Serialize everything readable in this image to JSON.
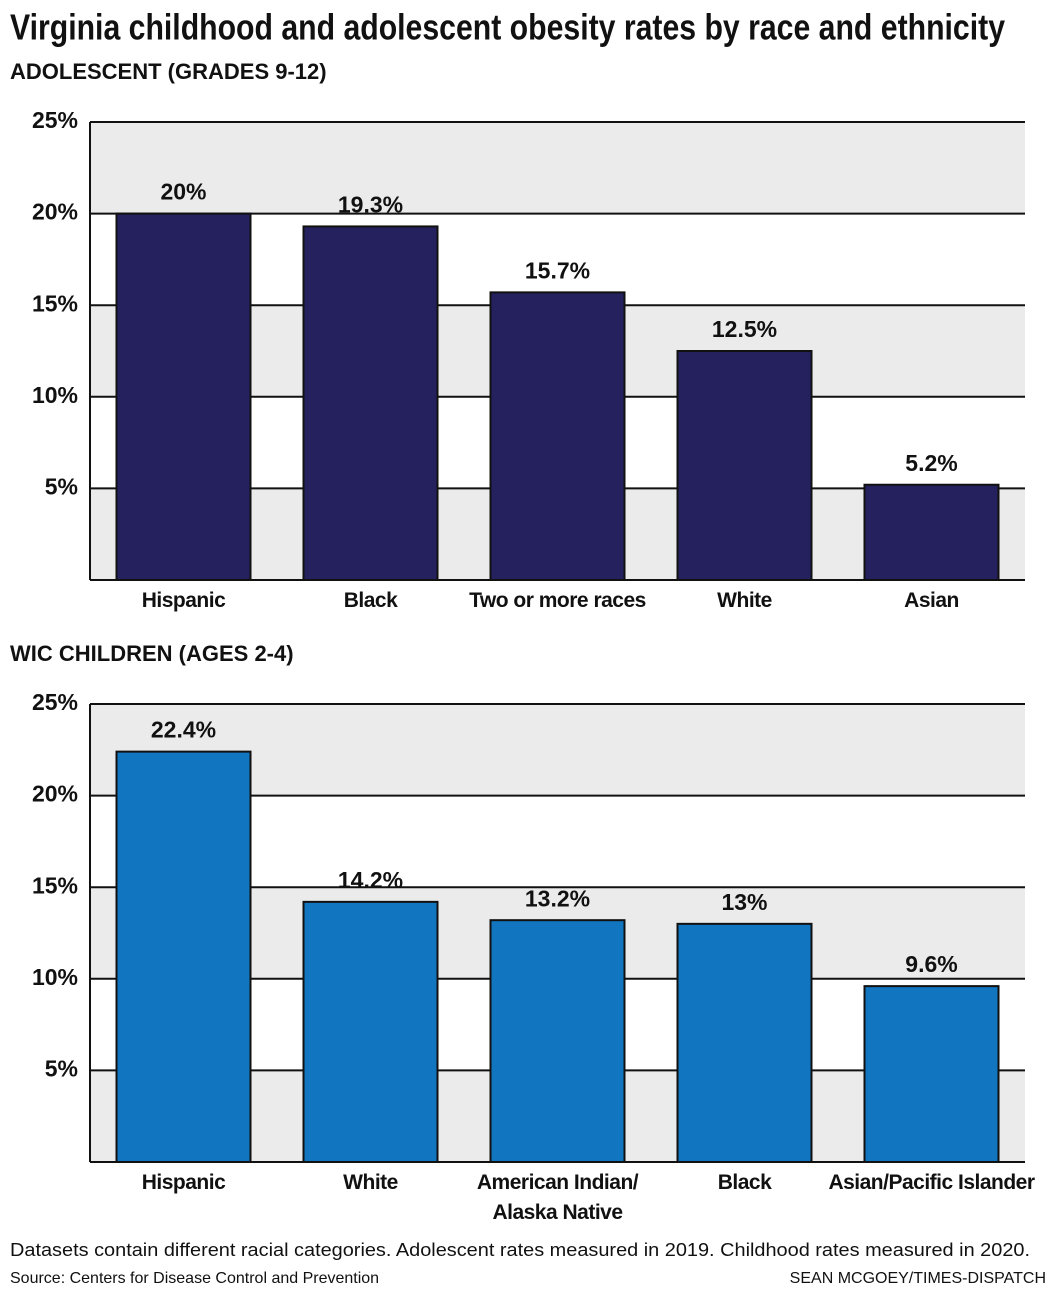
{
  "title": "Virginia childhood and adolescent obesity rates by race and ethnicity",
  "chart_data": [
    {
      "type": "bar",
      "subtitle": "ADOLESCENT (GRADES 9-12)",
      "categories": [
        "Hispanic",
        "Black",
        "Two or more races",
        "White",
        "Asian"
      ],
      "values": [
        20,
        19.3,
        15.7,
        12.5,
        5.2
      ],
      "value_labels": [
        "20%",
        "19.3%",
        "15.7%",
        "12.5%",
        "5.2%"
      ],
      "color": "#25215e",
      "ylim": [
        0,
        25
      ],
      "yticks": [
        {
          "value": 5,
          "label": "5%"
        },
        {
          "value": 10,
          "label": "10%"
        },
        {
          "value": 15,
          "label": "15%"
        },
        {
          "value": 20,
          "label": "20%"
        },
        {
          "value": 25,
          "label": "25%"
        }
      ],
      "grid": true
    },
    {
      "type": "bar",
      "subtitle": "WIC CHILDREN (AGES 2-4)",
      "categories": [
        "Hispanic",
        "White",
        "American Indian/ Alaska Native",
        "Black",
        "Asian/Pacific Islander"
      ],
      "values": [
        22.4,
        14.2,
        13.2,
        13,
        9.6
      ],
      "value_labels": [
        "22.4%",
        "14.2%",
        "13.2%",
        "13%",
        "9.6%"
      ],
      "color": "#1175c0",
      "ylim": [
        0,
        25
      ],
      "yticks": [
        {
          "value": 5,
          "label": "5%"
        },
        {
          "value": 10,
          "label": "10%"
        },
        {
          "value": 15,
          "label": "15%"
        },
        {
          "value": 20,
          "label": "20%"
        },
        {
          "value": 25,
          "label": "25%"
        }
      ],
      "grid": true
    }
  ],
  "footnote": "Datasets contain different racial categories. Adolescent rates measured in 2019. Childhood rates measured in 2020.",
  "source": "Source: Centers for Disease Control and Prevention",
  "credit": "SEAN MCGOEY/TIMES-DISPATCH"
}
